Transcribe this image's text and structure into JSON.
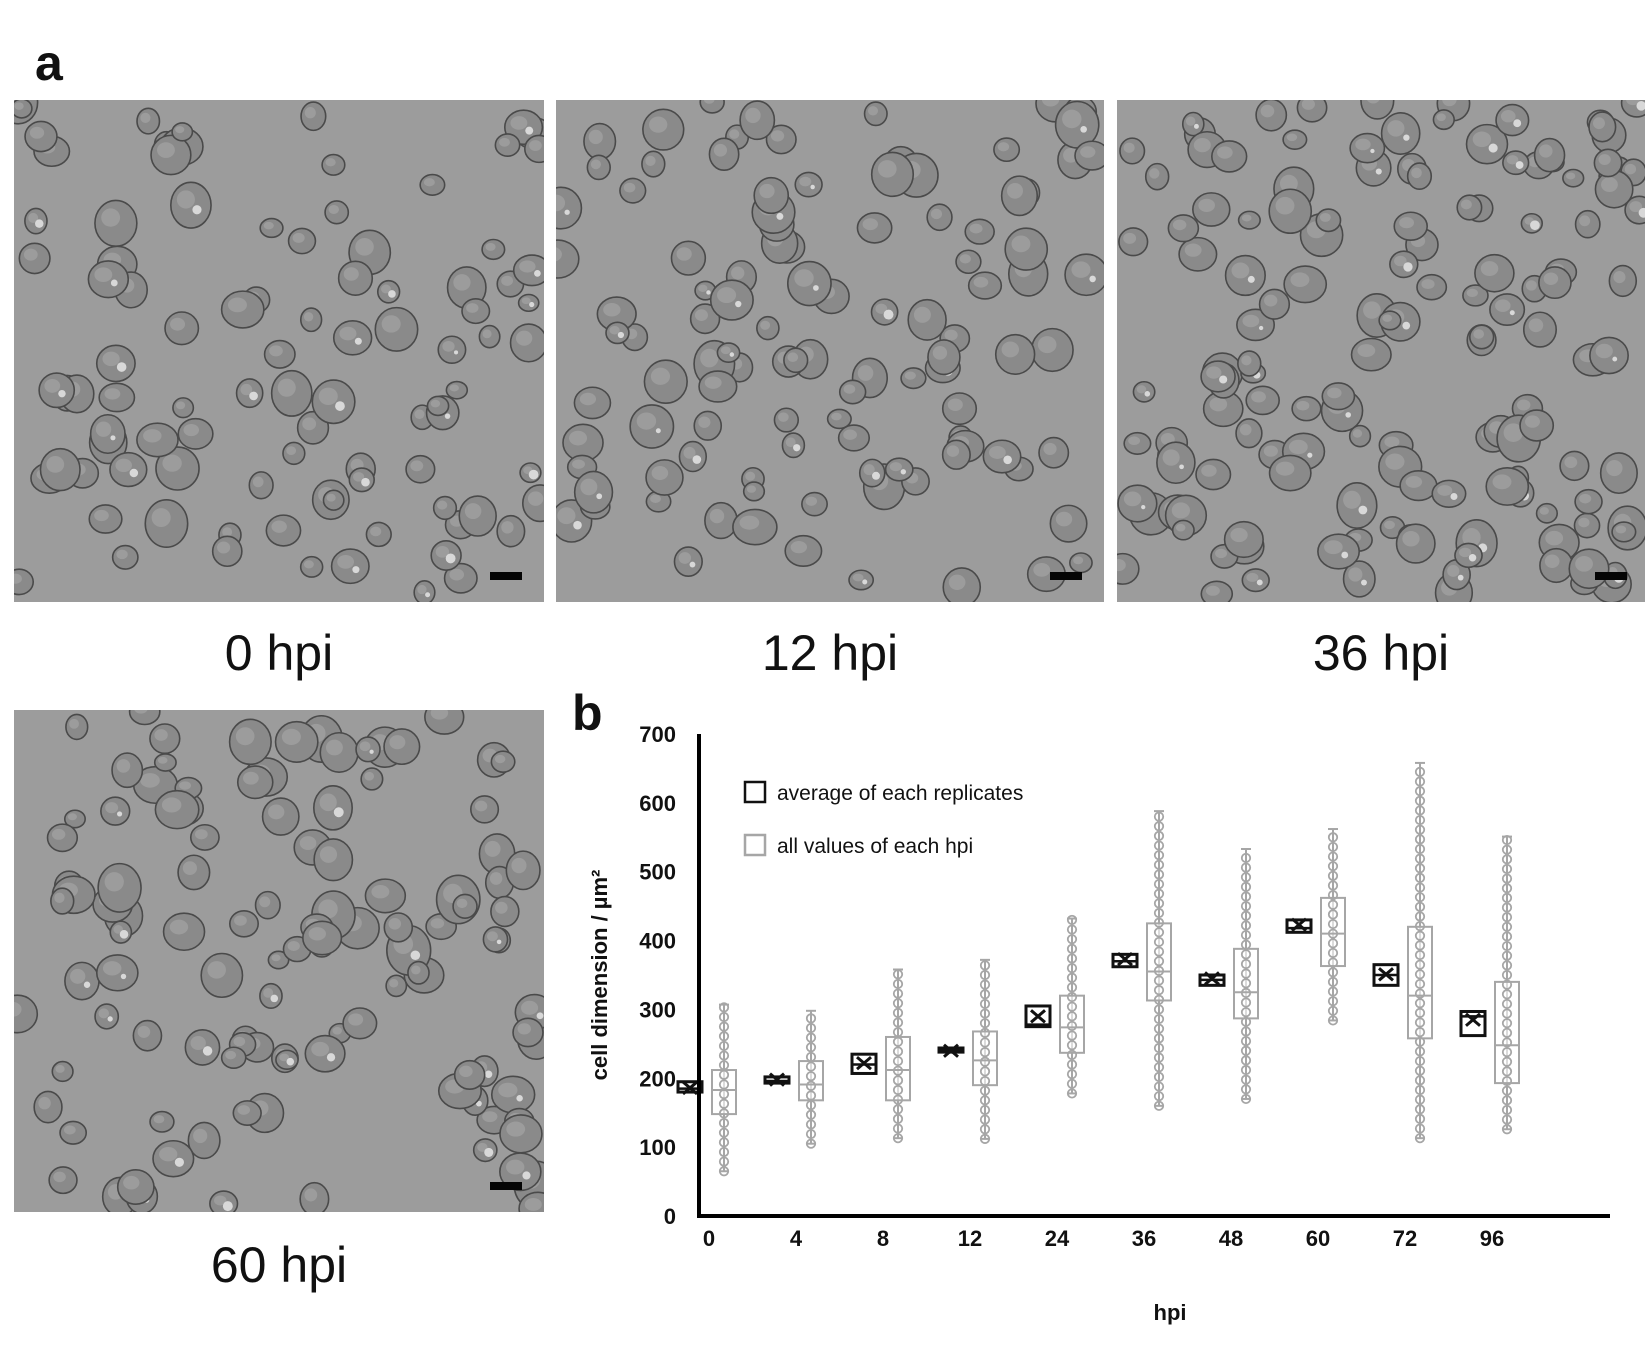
{
  "panel_a": {
    "letter": "a",
    "images": [
      {
        "caption": "0 hpi"
      },
      {
        "caption": "12 hpi"
      },
      {
        "caption": "36 hpi"
      },
      {
        "caption": "60 hpi"
      }
    ]
  },
  "panel_b": {
    "letter": "b"
  },
  "colors": {
    "average": "#111111",
    "all_values": "#a6a6a6",
    "micrograph_bg": "#9c9c9c"
  },
  "chart_data": {
    "type": "box",
    "xlabel": "hpi",
    "ylabel": "cell dimension / µm²",
    "ylim": [
      0,
      700
    ],
    "yticks": [
      "0",
      "100",
      "200",
      "300",
      "400",
      "500",
      "600",
      "700"
    ],
    "categories": [
      "0",
      "4",
      "8",
      "12",
      "24",
      "36",
      "48",
      "60",
      "72",
      "96"
    ],
    "grid": false,
    "legend_placement": "top-left",
    "series": [
      {
        "name": "average of each replicates",
        "boxes": [
          {
            "min": 180,
            "q1": 180,
            "median": 185,
            "q3": 195,
            "max": 195,
            "mean": 186
          },
          {
            "min": 192,
            "q1": 193,
            "median": 196,
            "q3": 202,
            "max": 202,
            "mean": 198
          },
          {
            "min": 207,
            "q1": 207,
            "median": 220,
            "q3": 235,
            "max": 235,
            "mean": 222
          },
          {
            "min": 238,
            "q1": 238,
            "median": 241,
            "q3": 244,
            "max": 244,
            "mean": 240
          },
          {
            "min": 275,
            "q1": 275,
            "median": 278,
            "q3": 305,
            "max": 305,
            "mean": 290
          },
          {
            "min": 362,
            "q1": 362,
            "median": 370,
            "q3": 380,
            "max": 380,
            "mean": 373
          },
          {
            "min": 335,
            "q1": 335,
            "median": 343,
            "q3": 350,
            "max": 350,
            "mean": 345
          },
          {
            "min": 412,
            "q1": 412,
            "median": 418,
            "q3": 430,
            "max": 430,
            "mean": 423
          },
          {
            "min": 335,
            "q1": 335,
            "median": 350,
            "q3": 365,
            "max": 365,
            "mean": 351
          },
          {
            "min": 262,
            "q1": 262,
            "median": 290,
            "q3": 297,
            "max": 297,
            "mean": 285
          }
        ]
      },
      {
        "name": "all values of each hpi",
        "boxes": [
          {
            "min": 65,
            "q1": 148,
            "median": 183,
            "q3": 212,
            "max": 307,
            "mean": 181
          },
          {
            "min": 105,
            "q1": 168,
            "median": 191,
            "q3": 225,
            "max": 298,
            "mean": 195
          },
          {
            "min": 113,
            "q1": 168,
            "median": 212,
            "q3": 260,
            "max": 358,
            "mean": 214
          },
          {
            "min": 112,
            "q1": 190,
            "median": 226,
            "q3": 268,
            "max": 372,
            "mean": 229
          },
          {
            "min": 178,
            "q1": 237,
            "median": 274,
            "q3": 320,
            "max": 432,
            "mean": 282
          },
          {
            "min": 160,
            "q1": 313,
            "median": 355,
            "q3": 425,
            "max": 588,
            "mean": 368
          },
          {
            "min": 170,
            "q1": 287,
            "median": 325,
            "q3": 388,
            "max": 533,
            "mean": 337
          },
          {
            "min": 284,
            "q1": 363,
            "median": 410,
            "q3": 462,
            "max": 562,
            "mean": 416
          },
          {
            "min": 113,
            "q1": 258,
            "median": 320,
            "q3": 420,
            "max": 658,
            "mean": 343
          },
          {
            "min": 126,
            "q1": 193,
            "median": 248,
            "q3": 340,
            "max": 551,
            "mean": 271
          }
        ]
      }
    ]
  }
}
